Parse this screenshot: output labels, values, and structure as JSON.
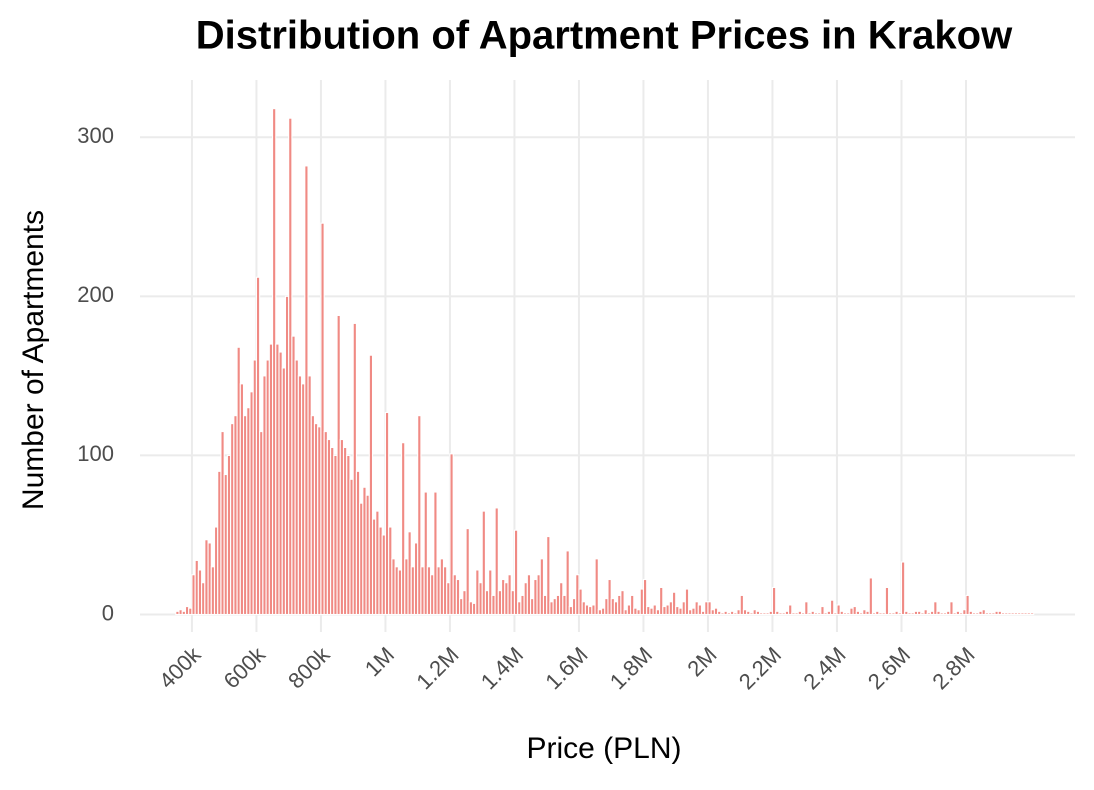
{
  "chart_data": {
    "type": "histogram",
    "title": "Distribution of Apartment Prices in Krakow",
    "xlabel": "Price (PLN)",
    "ylabel": "Number of Apartments",
    "color": "#f08a84",
    "grid": true,
    "xlim": [
      239000,
      3138000
    ],
    "ylim": [
      -11,
      336
    ],
    "yticks": [
      0,
      100,
      200,
      300
    ],
    "xticks": [
      {
        "value": 400000,
        "label": "400k"
      },
      {
        "value": 600000,
        "label": "600k"
      },
      {
        "value": 800000,
        "label": "800k"
      },
      {
        "value": 1000000,
        "label": "1M"
      },
      {
        "value": 1200000,
        "label": "1.2M"
      },
      {
        "value": 1400000,
        "label": "1.4M"
      },
      {
        "value": 1600000,
        "label": "1.6M"
      },
      {
        "value": 1800000,
        "label": "1.8M"
      },
      {
        "value": 2000000,
        "label": "2M"
      },
      {
        "value": 2200000,
        "label": "2.2M"
      },
      {
        "value": 2400000,
        "label": "2.4M"
      },
      {
        "value": 2600000,
        "label": "2.6M"
      },
      {
        "value": 2800000,
        "label": "2.8M"
      }
    ],
    "bins": [
      350000,
      360000,
      370000,
      380000,
      390000,
      400000,
      410000,
      420000,
      430000,
      440000,
      450000,
      460000,
      470000,
      480000,
      490000,
      500000,
      510000,
      520000,
      530000,
      540000,
      550000,
      560000,
      570000,
      580000,
      590000,
      600000,
      610000,
      620000,
      630000,
      640000,
      650000,
      660000,
      670000,
      680000,
      690000,
      700000,
      710000,
      720000,
      730000,
      740000,
      750000,
      760000,
      770000,
      780000,
      790000,
      800000,
      810000,
      820000,
      830000,
      840000,
      850000,
      860000,
      870000,
      880000,
      890000,
      900000,
      910000,
      920000,
      930000,
      940000,
      950000,
      960000,
      970000,
      980000,
      990000,
      1000000,
      1010000,
      1020000,
      1030000,
      1040000,
      1050000,
      1060000,
      1070000,
      1080000,
      1090000,
      1100000,
      1110000,
      1120000,
      1130000,
      1140000,
      1150000,
      1160000,
      1170000,
      1180000,
      1190000,
      1200000,
      1210000,
      1220000,
      1230000,
      1240000,
      1250000,
      1260000,
      1270000,
      1280000,
      1290000,
      1300000,
      1310000,
      1320000,
      1330000,
      1340000,
      1350000,
      1360000,
      1370000,
      1380000,
      1390000,
      1400000,
      1410000,
      1420000,
      1430000,
      1440000,
      1450000,
      1460000,
      1470000,
      1480000,
      1490000,
      1500000,
      1510000,
      1520000,
      1530000,
      1540000,
      1550000,
      1560000,
      1570000,
      1580000,
      1590000,
      1600000,
      1610000,
      1620000,
      1630000,
      1640000,
      1650000,
      1660000,
      1670000,
      1680000,
      1690000,
      1700000,
      1710000,
      1720000,
      1730000,
      1740000,
      1750000,
      1760000,
      1770000,
      1780000,
      1790000,
      1800000,
      1810000,
      1820000,
      1830000,
      1840000,
      1850000,
      1860000,
      1870000,
      1880000,
      1890000,
      1900000,
      1910000,
      1920000,
      1930000,
      1940000,
      1950000,
      1960000,
      1970000,
      1980000,
      1990000,
      2000000,
      2010000,
      2020000,
      2030000,
      2040000,
      2050000,
      2060000,
      2070000,
      2080000,
      2090000,
      2100000,
      2110000,
      2120000,
      2130000,
      2140000,
      2150000,
      2160000,
      2170000,
      2180000,
      2190000,
      2200000,
      2210000,
      2220000,
      2230000,
      2240000,
      2250000,
      2260000,
      2270000,
      2280000,
      2290000,
      2300000,
      2310000,
      2320000,
      2330000,
      2340000,
      2350000,
      2360000,
      2370000,
      2380000,
      2390000,
      2400000,
      2410000,
      2420000,
      2430000,
      2440000,
      2450000,
      2460000,
      2470000,
      2480000,
      2490000,
      2500000,
      2510000,
      2520000,
      2530000,
      2540000,
      2550000,
      2560000,
      2570000,
      2580000,
      2590000,
      2600000,
      2610000,
      2620000,
      2630000,
      2640000,
      2650000,
      2660000,
      2670000,
      2680000,
      2690000,
      2700000,
      2710000,
      2720000,
      2730000,
      2740000,
      2750000,
      2760000,
      2770000,
      2780000,
      2790000,
      2800000,
      2810000,
      2820000,
      2830000,
      2840000,
      2850000,
      2860000,
      2870000,
      2880000,
      2890000,
      2900000,
      2910000,
      2920000,
      2930000,
      2940000,
      2950000,
      2960000,
      2970000,
      2980000,
      2990000,
      3000000,
      3010000
    ],
    "counts": [
      2,
      3,
      2,
      5,
      4,
      25,
      34,
      28,
      20,
      47,
      45,
      30,
      55,
      90,
      115,
      88,
      100,
      120,
      125,
      168,
      145,
      125,
      130,
      140,
      160,
      212,
      115,
      150,
      160,
      170,
      318,
      170,
      165,
      155,
      200,
      312,
      175,
      160,
      150,
      145,
      282,
      150,
      125,
      120,
      118,
      246,
      115,
      110,
      105,
      100,
      188,
      110,
      105,
      100,
      85,
      183,
      90,
      70,
      80,
      75,
      163,
      60,
      65,
      55,
      50,
      127,
      55,
      35,
      30,
      28,
      108,
      35,
      52,
      30,
      45,
      125,
      30,
      77,
      30,
      25,
      77,
      30,
      35,
      30,
      20,
      101,
      25,
      22,
      10,
      15,
      54,
      8,
      7,
      28,
      20,
      65,
      15,
      28,
      12,
      67,
      15,
      22,
      20,
      25,
      15,
      53,
      8,
      12,
      20,
      25,
      10,
      22,
      25,
      35,
      12,
      49,
      8,
      10,
      12,
      20,
      12,
      40,
      5,
      10,
      25,
      16,
      8,
      6,
      5,
      6,
      35,
      3,
      4,
      10,
      22,
      10,
      8,
      12,
      15,
      3,
      6,
      12,
      4,
      3,
      16,
      22,
      5,
      4,
      6,
      3,
      17,
      5,
      6,
      8,
      14,
      5,
      4,
      8,
      16,
      3,
      4,
      8,
      6,
      2,
      8,
      8,
      3,
      4,
      2,
      1,
      2,
      1,
      2,
      1,
      3,
      12,
      3,
      2,
      1,
      3,
      2,
      1,
      1,
      1,
      2,
      17,
      2,
      1,
      1,
      2,
      6,
      1,
      1,
      2,
      1,
      8,
      1,
      2,
      1,
      1,
      5,
      1,
      2,
      9,
      1,
      6,
      2,
      1,
      1,
      4,
      5,
      2,
      1,
      3,
      2,
      23,
      1,
      2,
      1,
      1,
      17,
      1,
      1,
      2,
      1,
      33,
      2,
      1,
      1,
      2,
      2,
      1,
      3,
      1,
      2,
      8,
      2,
      1,
      1,
      2,
      8,
      1,
      2,
      1,
      3,
      12,
      2,
      1,
      1,
      2,
      3,
      1,
      1,
      1,
      2,
      2,
      1,
      1,
      1,
      1,
      1,
      1,
      1,
      1,
      1,
      1
    ]
  }
}
